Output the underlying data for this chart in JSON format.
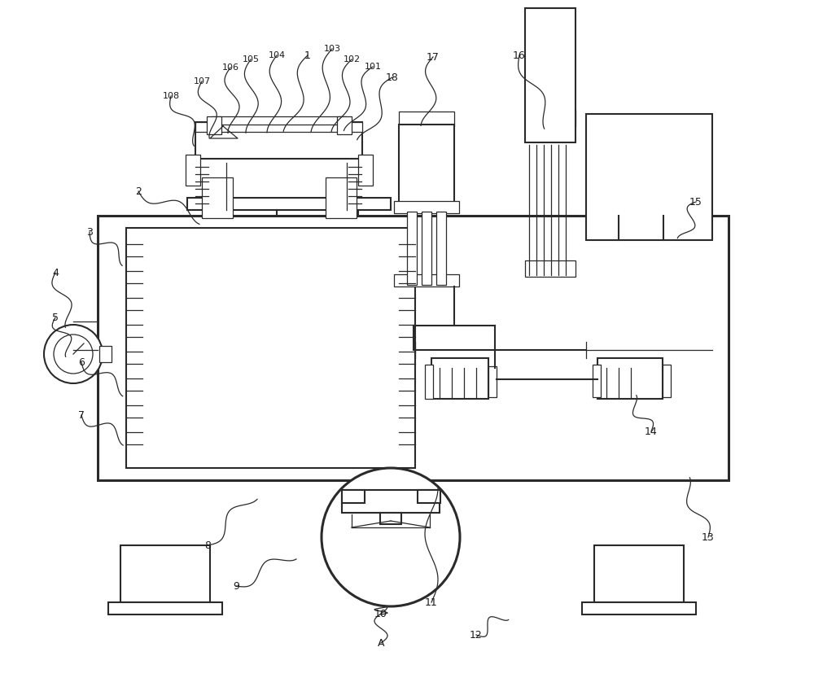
{
  "bg_color": "#ffffff",
  "lc": "#2a2a2a",
  "lw": 1.5,
  "tlw": 0.9
}
